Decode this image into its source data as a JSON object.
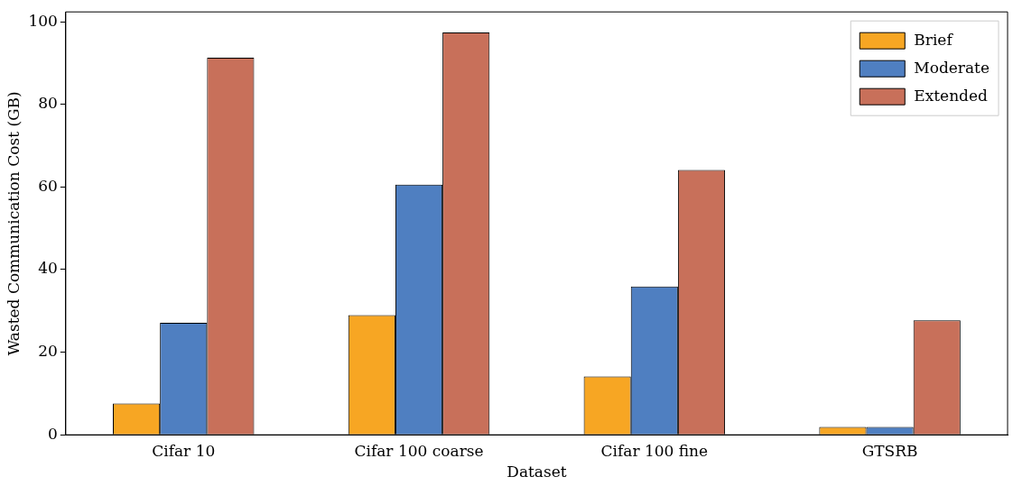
{
  "chart_data": {
    "type": "bar",
    "xlabel": "Dataset",
    "ylabel": "Wasted Communication Cost (GB)",
    "categories": [
      "Cifar 10",
      "Cifar 100 coarse",
      "Cifar 100 fine",
      "GTSRB"
    ],
    "series": [
      {
        "name": "Brief",
        "color": "#f7a623",
        "values": [
          7.6,
          29.0,
          14.1,
          1.9
        ]
      },
      {
        "name": "Moderate",
        "color": "#4f7fc1",
        "values": [
          27.1,
          60.6,
          35.9,
          1.9
        ]
      },
      {
        "name": "Extended",
        "color": "#c8705a",
        "values": [
          91.3,
          97.4,
          64.1,
          27.7
        ]
      }
    ],
    "ylim": [
      0,
      102.4
    ],
    "yticks": [
      0,
      20,
      40,
      60,
      80,
      100
    ],
    "grid": false,
    "legend": "top right"
  }
}
